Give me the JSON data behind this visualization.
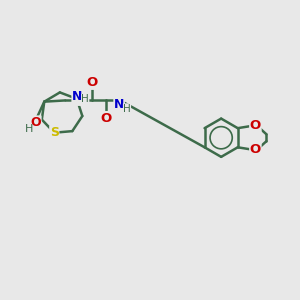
{
  "bg_color": "#e8e8e8",
  "bond_color": "#3d6b4a",
  "s_color": "#ccbb00",
  "o_color": "#cc0000",
  "n_color": "#0000cc",
  "lw": 1.8,
  "figsize": [
    3.0,
    3.0
  ],
  "dpi": 100,
  "xlim": [
    0,
    12
  ],
  "ylim": [
    0,
    10
  ]
}
